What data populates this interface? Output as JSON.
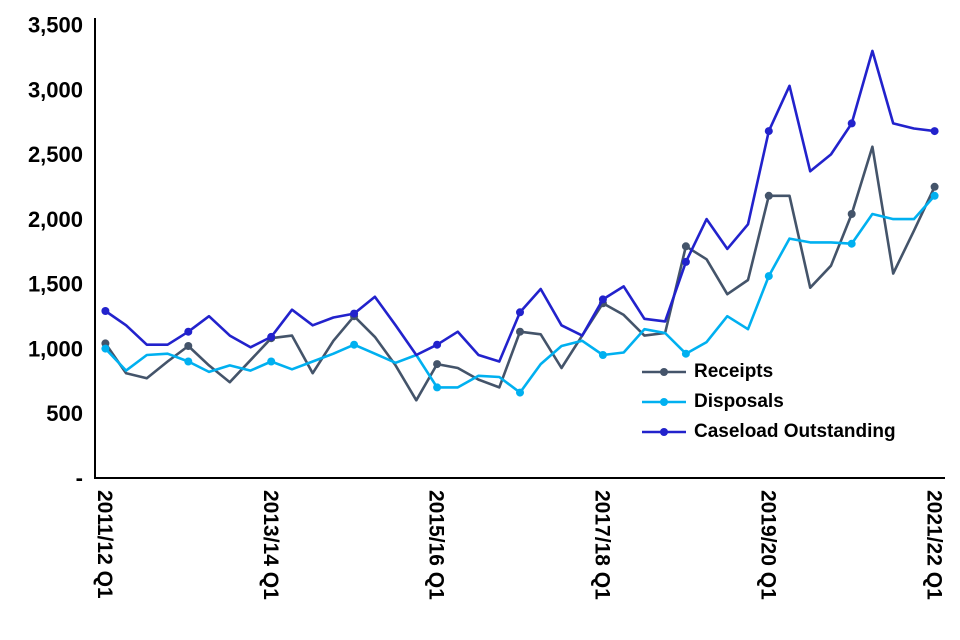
{
  "chart_data": {
    "type": "line",
    "title": "",
    "xlabel": "",
    "ylabel": "",
    "ylim": [
      0,
      3500
    ],
    "grid": false,
    "legend_position": "inside-bottom-right",
    "marker_every": 4,
    "axis_color": "#000000",
    "y_ticks": [
      {
        "value": 0,
        "label": "-"
      },
      {
        "value": 500,
        "label": "500"
      },
      {
        "value": 1000,
        "label": "1,000"
      },
      {
        "value": 1500,
        "label": "1,500"
      },
      {
        "value": 2000,
        "label": "2,000"
      },
      {
        "value": 2500,
        "label": "2,500"
      },
      {
        "value": 3000,
        "label": "3,000"
      },
      {
        "value": 3500,
        "label": "3,500"
      }
    ],
    "x_tick_indices": [
      0,
      8,
      16,
      24,
      32,
      40
    ],
    "x_tick_labels": [
      "2011/12 Q1",
      "2013/14 Q1",
      "2015/16 Q1",
      "2017/18 Q1",
      "2019/20 Q1",
      "2021/22 Q1"
    ],
    "categories": [
      "2011/12 Q1",
      "2011/12 Q2",
      "2011/12 Q3",
      "2011/12 Q4",
      "2012/13 Q1",
      "2012/13 Q2",
      "2012/13 Q3",
      "2012/13 Q4",
      "2013/14 Q1",
      "2013/14 Q2",
      "2013/14 Q3",
      "2013/14 Q4",
      "2014/15 Q1",
      "2014/15 Q2",
      "2014/15 Q3",
      "2014/15 Q4",
      "2015/16 Q1",
      "2015/16 Q2",
      "2015/16 Q3",
      "2015/16 Q4",
      "2016/17 Q1",
      "2016/17 Q2",
      "2016/17 Q3",
      "2016/17 Q4",
      "2017/18 Q1",
      "2017/18 Q2",
      "2017/18 Q3",
      "2017/18 Q4",
      "2018/19 Q1",
      "2018/19 Q2",
      "2018/19 Q3",
      "2018/19 Q4",
      "2019/20 Q1",
      "2019/20 Q2",
      "2019/20 Q3",
      "2019/20 Q4",
      "2020/21 Q1",
      "2020/21 Q2",
      "2020/21 Q3",
      "2020/21 Q4",
      "2021/22 Q1"
    ],
    "series": [
      {
        "name": "Receipts",
        "color": "#44546A",
        "values": [
          1040,
          810,
          770,
          900,
          1020,
          870,
          740,
          910,
          1080,
          1100,
          810,
          1060,
          1250,
          1090,
          870,
          600,
          880,
          850,
          760,
          700,
          1130,
          1110,
          850,
          1100,
          1350,
          1260,
          1100,
          1120,
          1790,
          1690,
          1420,
          1530,
          2180,
          2180,
          1470,
          1640,
          2040,
          2560,
          1580,
          1910,
          2250
        ]
      },
      {
        "name": "Disposals",
        "color": "#00B0F0",
        "values": [
          1000,
          830,
          950,
          960,
          900,
          820,
          870,
          830,
          900,
          840,
          900,
          960,
          1030,
          960,
          890,
          950,
          700,
          700,
          790,
          780,
          660,
          880,
          1020,
          1060,
          950,
          970,
          1150,
          1120,
          960,
          1050,
          1250,
          1150,
          1560,
          1850,
          1820,
          1820,
          1810,
          2040,
          2000,
          2000,
          2180
        ]
      },
      {
        "name": "Caseload Outstanding",
        "color": "#2222CC",
        "values": [
          1290,
          1180,
          1030,
          1030,
          1130,
          1250,
          1100,
          1010,
          1090,
          1300,
          1180,
          1240,
          1270,
          1400,
          1180,
          950,
          1030,
          1130,
          950,
          900,
          1280,
          1460,
          1180,
          1100,
          1380,
          1480,
          1230,
          1210,
          1670,
          2000,
          1770,
          1960,
          2680,
          3030,
          2370,
          2500,
          2740,
          3300,
          2740,
          2700,
          2680
        ]
      }
    ]
  }
}
